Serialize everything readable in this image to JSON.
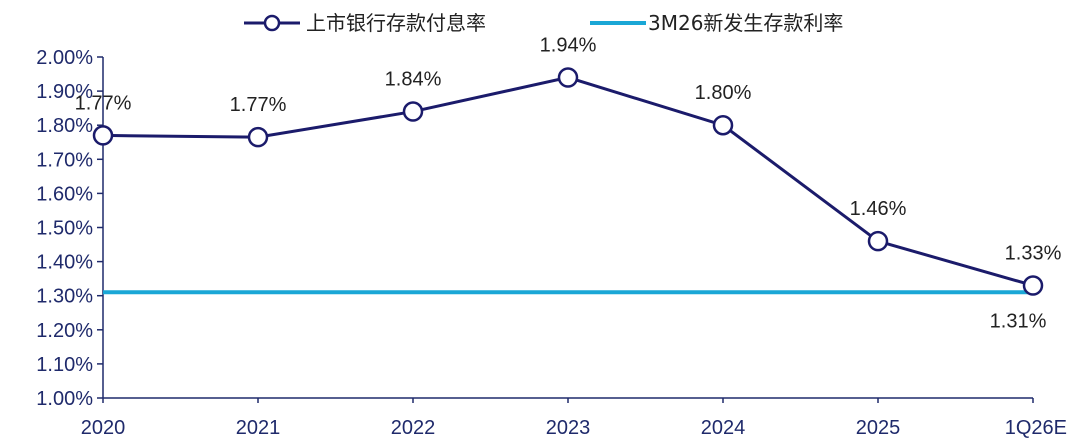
{
  "chart_data": {
    "type": "line",
    "categories": [
      "2020",
      "2021",
      "2022",
      "2023",
      "2024",
      "2025",
      "1Q26E"
    ],
    "series": [
      {
        "name": "上市银行存款付息率",
        "values": [
          1.77,
          1.765,
          1.84,
          1.94,
          1.8,
          1.46,
          1.33
        ],
        "labels": [
          "1.77%",
          "1.77%",
          "1.84%",
          "1.94%",
          "1.80%",
          "1.46%",
          "1.33%"
        ],
        "color": "#1b1b6b",
        "marker": "hollow-circle"
      },
      {
        "name": "3M26新发生存款利率",
        "value": 1.31,
        "label": "1.31%",
        "color": "#1aa7d6",
        "style": "horizontal-line"
      }
    ],
    "y_ticks": [
      "1.00%",
      "1.10%",
      "1.20%",
      "1.30%",
      "1.40%",
      "1.50%",
      "1.60%",
      "1.70%",
      "1.80%",
      "1.90%",
      "2.00%"
    ],
    "ylim": [
      1.0,
      2.0
    ],
    "grid": false,
    "legend": "top-center"
  }
}
